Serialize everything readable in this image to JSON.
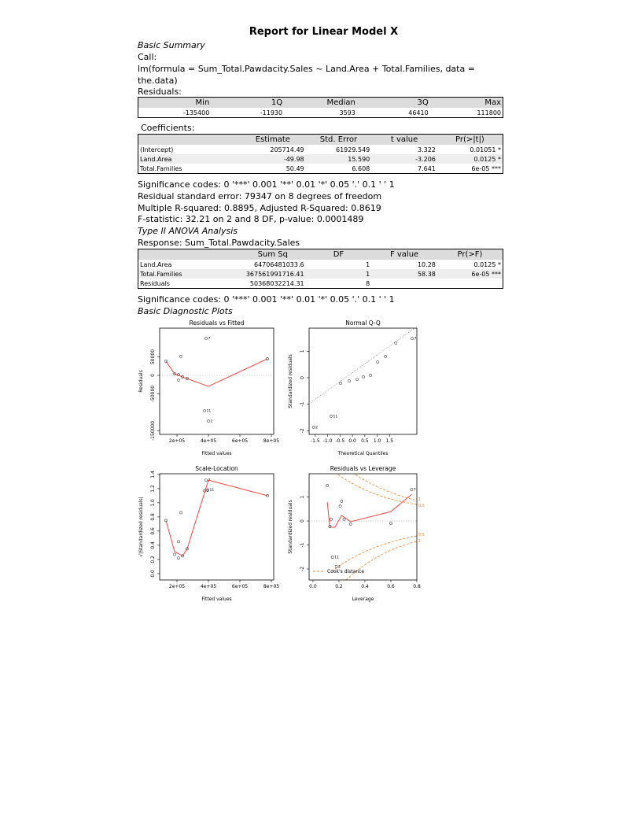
{
  "header": {
    "title": "Report for Linear Model X"
  },
  "summary": {
    "heading": "Basic Summary",
    "call_label": "Call:",
    "call": "lm(formula = Sum_Total.Pawdacity.Sales ~ Land.Area + Total.Families, data = the.data)",
    "residuals_label": "Residuals:",
    "residuals": {
      "header": [
        "Min",
        "1Q",
        "Median",
        "3Q",
        "Max"
      ],
      "rows": [
        [
          "-135400",
          "-11930",
          "3593",
          "46410",
          "111800"
        ]
      ]
    },
    "coefficients_label": "Coefficients:",
    "coefficients": {
      "header": [
        "Estimate",
        "Std. Error",
        "t value",
        "Pr(>|t|)"
      ],
      "rows": [
        [
          "(Intercept)",
          "205714.49",
          "61929.549",
          "3.322",
          "0.01051 *"
        ],
        [
          "Land.Area",
          "-49.98",
          "15.590",
          "-3.206",
          "0.0125 *"
        ],
        [
          "Total.Families",
          "50.49",
          "6.608",
          "7.641",
          "6e-05 ***"
        ]
      ]
    },
    "lines": [
      "Significance codes: 0 '***' 0.001 '**' 0.01 '*' 0.05 '.' 0.1 ' ' 1",
      "Residual standard error: 79347 on 8 degrees of freedom",
      "Multiple R-squared: 0.8895, Adjusted R-Squared: 0.8619",
      "F-statistic: 32.21 on 2 and 8 DF, p-value: 0.0001489"
    ]
  },
  "anova": {
    "heading": "Type II ANOVA Analysis",
    "response": "Response: Sum_Total.Pawdacity.Sales",
    "table": {
      "header": [
        "Sum Sq",
        "DF",
        "F value",
        "Pr(>F)"
      ],
      "rows": [
        [
          "Land.Area",
          "64706481033.6",
          "1",
          "10.28",
          "0.0125 *"
        ],
        [
          "Total.Families",
          "367561991716.41",
          "1",
          "58.38",
          "6e-05 ***"
        ],
        [
          "Residuals",
          "50368032214.31",
          "8"
        ]
      ]
    },
    "lines": [
      "Significance codes: 0 '***' 0.001 '**' 0.01 '*' 0.05 '.' 0.1 ' ' 1"
    ]
  },
  "plots": {
    "heading": "Basic Diagnostic Plots",
    "panels": [
      {
        "type": "scatter",
        "title": "Residuals vs Fitted",
        "xlabel": "Fitted values",
        "ylabel": "Residuals",
        "xlim": [
          90000,
          815000
        ],
        "ylim": [
          -159600,
          127700
        ],
        "xticks": [
          {
            "value": 200000,
            "label": "2e+05"
          },
          {
            "value": 400000,
            "label": "4e+05"
          },
          {
            "value": 600000,
            "label": "6e+05"
          },
          {
            "value": 800000,
            "label": "8e+05"
          }
        ],
        "yticks": [
          -150000,
          -50000,
          0,
          50000
        ],
        "x": [
          130000,
          185000,
          210000,
          210000,
          225000,
          235000,
          265000,
          385000,
          375000,
          400000,
          775000
        ],
        "y": [
          38300,
          4300,
          2100,
          -12800,
          51000,
          -4300,
          -8500,
          100000,
          -95700,
          -123400,
          44700
        ],
        "point_labels": [
          null,
          null,
          null,
          null,
          null,
          null,
          null,
          "7",
          "11",
          "2",
          null
        ],
        "smooth": {
          "x": [
            130000,
            185000,
            235000,
            400000,
            775000
          ],
          "y": [
            38300,
            4300,
            -4300,
            -29800,
            44700
          ]
        },
        "zero_line": true,
        "point_color": "#444444",
        "smooth_color": "#f04848"
      },
      {
        "type": "scatter",
        "title": "Normal Q-Q",
        "xlabel": "Theoretical Quantiles",
        "ylabel": "Standardized residuals",
        "xlim": [
          -1.75,
          2.6
        ],
        "ylim": [
          -2.14,
          1.87
        ],
        "xticks": [
          -1.5,
          {
            "value": -1,
            "label": "-1.0"
          },
          -0.5,
          {
            "value": 0,
            "label": "0.0"
          },
          0.5,
          {
            "value": 1,
            "label": "1.0"
          },
          1.5
        ],
        "yticks": [
          -2,
          -1,
          0,
          1
        ],
        "x": [
          -1.57,
          -0.86,
          -0.48,
          -0.13,
          0.19,
          0.44,
          0.73,
          1.02,
          1.33,
          1.75,
          2.41
        ],
        "y": [
          -1.87,
          -1.45,
          -0.21,
          -0.12,
          -0.06,
          0.03,
          0.09,
          0.59,
          0.8,
          1.31,
          1.48
        ],
        "point_labels": [
          "2",
          "11",
          null,
          null,
          null,
          null,
          null,
          null,
          null,
          null,
          "7"
        ],
        "reference": {
          "x": [
            -1.75,
            2.6
          ],
          "y": [
            -0.98,
            1.93
          ]
        },
        "point_color": "#444444"
      },
      {
        "type": "scatter",
        "title": "Scale-Location",
        "xlabel": "Fitted values",
        "ylabel": "√|Standardized residuals|",
        "xlim": [
          90000,
          815000
        ],
        "ylim": [
          -0.09,
          1.41
        ],
        "xticks": [
          {
            "value": 200000,
            "label": "2e+05"
          },
          {
            "value": 400000,
            "label": "4e+05"
          },
          {
            "value": 600000,
            "label": "6e+05"
          },
          {
            "value": 800000,
            "label": "8e+05"
          }
        ],
        "yticks": [
          {
            "value": 0,
            "label": "0.0"
          },
          0.2,
          0.4,
          0.6,
          0.8,
          {
            "value": 1,
            "label": "1.0"
          },
          1.2,
          1.4
        ],
        "x": [
          130000,
          185000,
          210000,
          210000,
          225000,
          235000,
          265000,
          385000,
          375000,
          395000,
          775000
        ],
        "y": [
          0.75,
          0.27,
          0.45,
          0.22,
          0.86,
          0.25,
          0.35,
          1.32,
          1.17,
          1.18,
          1.1
        ],
        "point_labels": [
          null,
          null,
          null,
          null,
          null,
          null,
          null,
          "7",
          "2",
          "11",
          null
        ],
        "smooth": {
          "x": [
            130000,
            185000,
            235000,
            265000,
            400000,
            775000
          ],
          "y": [
            0.75,
            0.31,
            0.25,
            0.35,
            1.32,
            1.1
          ]
        },
        "point_color": "#444444",
        "smooth_color": "#f04848"
      },
      {
        "type": "scatter",
        "title": "Residuals vs Leverage",
        "xlabel": "Leverage",
        "ylabel": "Standardized residuals",
        "xlim": [
          -0.03,
          0.8
        ],
        "ylim": [
          -2.46,
          1.97
        ],
        "xticks": [
          {
            "value": 0,
            "label": "0.0"
          },
          0.2,
          0.4,
          0.6,
          0.8
        ],
        "yticks": [
          -2,
          -1,
          0,
          1
        ],
        "x": [
          0.11,
          0.13,
          0.14,
          0.21,
          0.22,
          0.24,
          0.29,
          0.6,
          0.76,
          0.15,
          0.18
        ],
        "y": [
          1.48,
          -0.23,
          0.07,
          0.62,
          0.82,
          0.07,
          -0.13,
          -0.1,
          1.31,
          -1.51,
          -1.9
        ],
        "point_labels": [
          null,
          null,
          null,
          null,
          null,
          null,
          null,
          null,
          "7",
          "11",
          "2"
        ],
        "smooth": {
          "x": [
            0.11,
            0.13,
            0.17,
            0.22,
            0.29,
            0.6,
            0.76
          ],
          "y": [
            0.79,
            -0.26,
            -0.26,
            0.23,
            -0.03,
            0.39,
            1.11
          ]
        },
        "zero_line": true,
        "point_color": "#444444",
        "smooth_color": "#f04848",
        "legend": "Cook's distance",
        "cook_labels": [
          "1",
          "0.5",
          "0.5",
          "1"
        ]
      }
    ]
  }
}
